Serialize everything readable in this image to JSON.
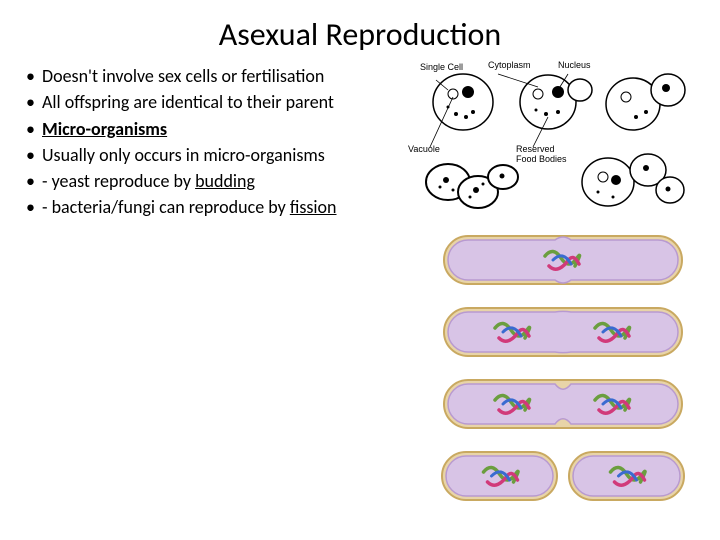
{
  "title": "Asexual Reproduction",
  "bullets": [
    {
      "text": "Doesn't involve sex cells or fertilisation",
      "underline": false,
      "bold": false
    },
    {
      "text": "All offspring are identical to their parent",
      "underline": false,
      "bold": false
    },
    {
      "text": "Micro-organisms",
      "underline": true,
      "bold": true
    },
    {
      "text": "Usually only occurs in micro-organisms",
      "underline": false,
      "bold": false
    },
    {
      "html": "- yeast reproduce by <span class=\"underline\">budding</span>"
    },
    {
      "html": "- bacteria/fungi can reproduce by <span class=\"underline\">fission</span>"
    }
  ],
  "yeast_labels": {
    "single_cell": "Single\nCell",
    "cytoplasm": "Cytoplasm",
    "nucleus": "Nucleus",
    "vacuole": "Vacuole",
    "reserved": "Reserved\nFood Bodies"
  },
  "yeast_style": {
    "stroke": "#000000",
    "fill": "#ffffff",
    "vacuole_fill": "#ffffff",
    "stipple_fill": "#000000"
  },
  "bacteria": {
    "outer_fill": "#e8d4a8",
    "outer_stroke": "#c9a961",
    "inner_fill": "#d8c4e6",
    "inner_stroke": "#b89ad0",
    "dna_color1": "#6b9e3f",
    "dna_color2": "#d13a7a",
    "dna_color3": "#3a6bd1",
    "stages": [
      {
        "split": 0,
        "dna_count": 1
      },
      {
        "split": 0.2,
        "dna_count": 2
      },
      {
        "split": 0.7,
        "dna_count": 2
      },
      {
        "split": 1,
        "dna_count": 2
      }
    ]
  }
}
